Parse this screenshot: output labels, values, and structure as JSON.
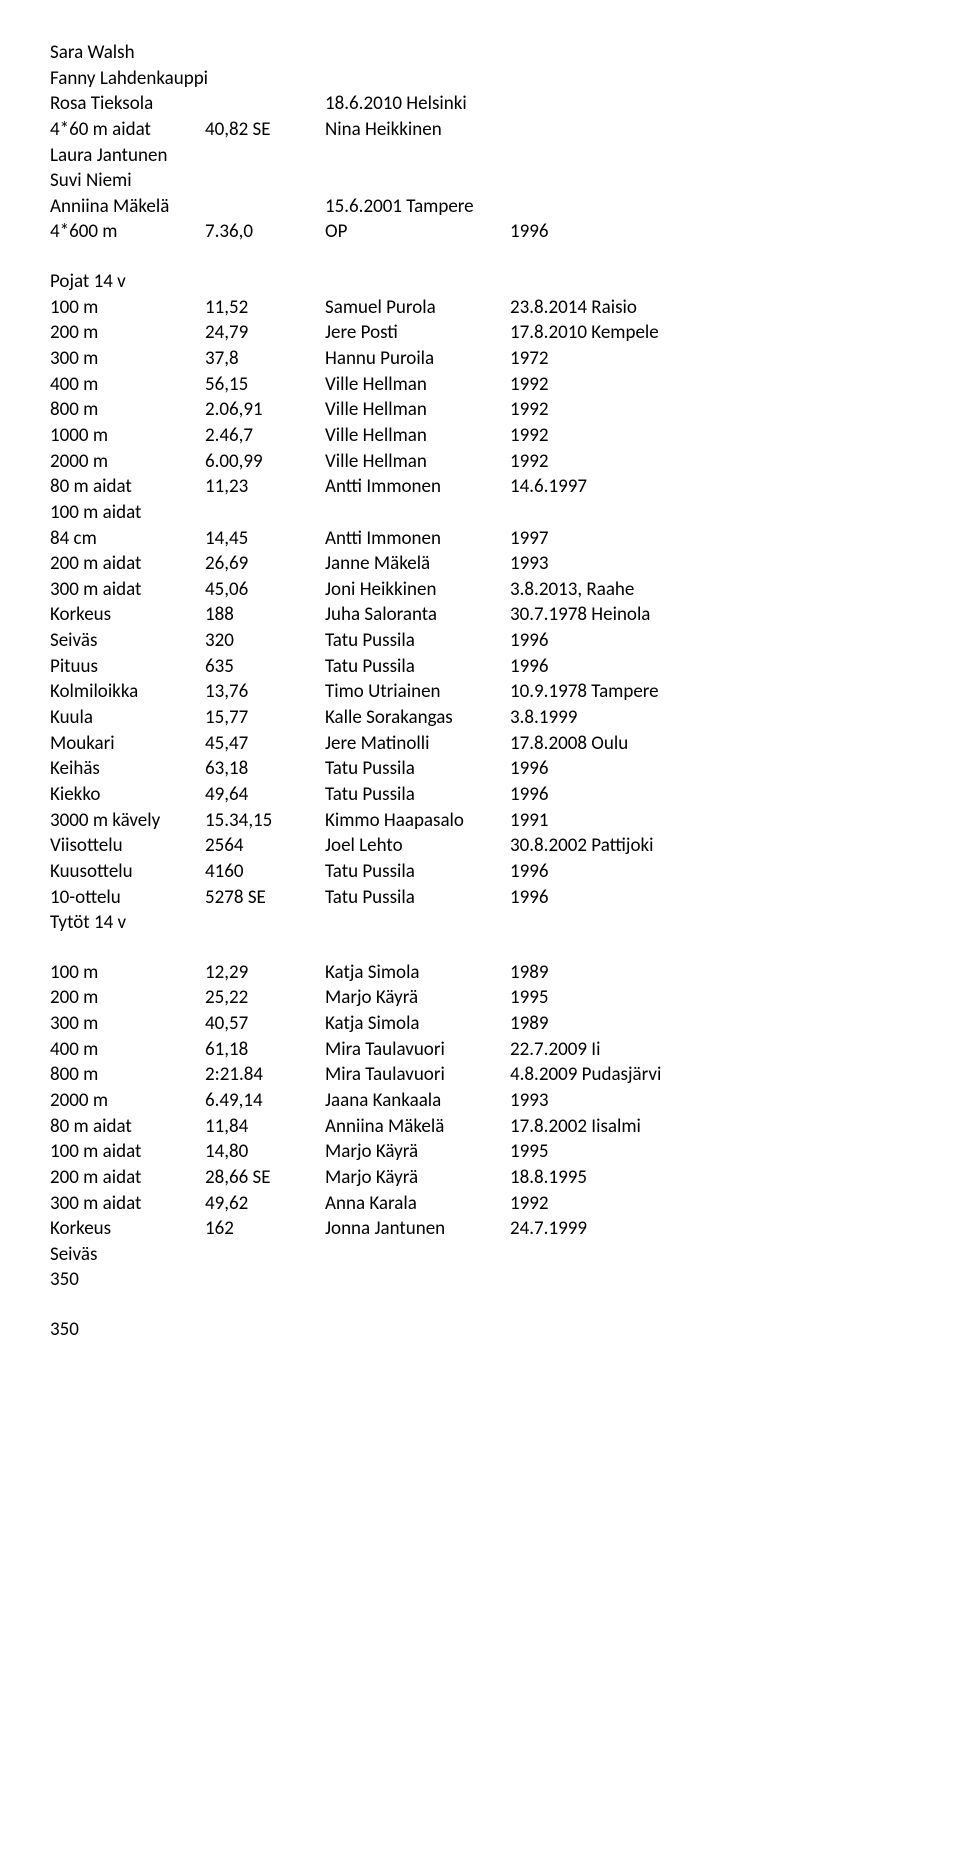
{
  "header_lines": [
    "Sara Walsh",
    "Fanny Lahdenkauppi"
  ],
  "rosa_line": {
    "c1": "Rosa Tieksola",
    "c2": "",
    "c3": "18.6.2010 Helsinki",
    "c4": ""
  },
  "r4x60": {
    "c1": "4*60 m aidat",
    "c2": "40,82 SE",
    "c3": "Nina Heikkinen",
    "c4": ""
  },
  "mid_lines": [
    "Laura Jantunen",
    "Suvi Niemi"
  ],
  "anniina": {
    "c1": "Anniina Mäkelä",
    "c2": "",
    "c3": "15.6.2001 Tampere",
    "c4": ""
  },
  "r4600": {
    "c1": "4*600 m",
    "c2": "7.36,0",
    "c3": "OP",
    "c4": "1996"
  },
  "pojat_title": "Pojat 14 v",
  "pojat_rows": [
    {
      "c1": "100 m",
      "c2": "11,52",
      "c3": "Samuel Purola",
      "c4": "23.8.2014 Raisio"
    },
    {
      "c1": "200 m",
      "c2": "24,79",
      "c3": "Jere Posti",
      "c4": "17.8.2010 Kempele"
    },
    {
      "c1": "300 m",
      "c2": "37,8",
      "c3": "Hannu Puroila",
      "c4": "1972"
    },
    {
      "c1": "400 m",
      "c2": "56,15",
      "c3": "Ville Hellman",
      "c4": "1992"
    },
    {
      "c1": "800 m",
      "c2": "2.06,91",
      "c3": "Ville Hellman",
      "c4": "1992"
    },
    {
      "c1": "1000 m",
      "c2": "2.46,7",
      "c3": "Ville Hellman",
      "c4": "1992"
    },
    {
      "c1": "2000 m",
      "c2": "6.00,99",
      "c3": "Ville Hellman",
      "c4": "1992"
    },
    {
      "c1": "80 m aidat",
      "c2": "11,23",
      "c3": "Antti Immonen",
      "c4": "14.6.1997"
    }
  ],
  "aidat100_line": "100 m aidat",
  "pojat_rows2": [
    {
      "c1": "84 cm",
      "c2": "14,45",
      "c3": "Antti Immonen",
      "c4": "1997"
    },
    {
      "c1": "200 m aidat",
      "c2": "26,69",
      "c3": "Janne Mäkelä",
      "c4": "1993"
    },
    {
      "c1": "300 m aidat",
      "c2": "45,06",
      "c3": "Joni Heikkinen",
      "c4": "3.8.2013, Raahe"
    },
    {
      "c1": "Korkeus",
      "c2": "188",
      "c3": "Juha Saloranta",
      "c4": "30.7.1978 Heinola"
    },
    {
      "c1": "Seiväs",
      "c2": "320",
      "c3": "Tatu Pussila",
      "c4": "1996"
    },
    {
      "c1": "Pituus",
      "c2": "635",
      "c3": "Tatu Pussila",
      "c4": "1996"
    },
    {
      "c1": "Kolmiloikka",
      "c2": "13,76",
      "c3": "Timo Utriainen",
      "c4": "10.9.1978 Tampere"
    },
    {
      "c1": "Kuula",
      "c2": "15,77",
      "c3": "Kalle Sorakangas",
      "c4": "3.8.1999"
    },
    {
      "c1": "Moukari",
      "c2": "45,47",
      "c3": "Jere Matinolli",
      "c4": "17.8.2008 Oulu"
    },
    {
      "c1": "Keihäs",
      "c2": "63,18",
      "c3": "Tatu Pussila",
      "c4": "1996"
    },
    {
      "c1": "Kiekko",
      "c2": "49,64",
      "c3": "Tatu Pussila",
      "c4": "1996"
    },
    {
      "c1": "3000 m kävely",
      "c2": "15.34,15",
      "c3": "Kimmo Haapasalo",
      "c4": "1991"
    },
    {
      "c1": "Viisottelu",
      "c2": "2564",
      "c3": "Joel Lehto",
      "c4": "30.8.2002 Pattijoki"
    },
    {
      "c1": "Kuusottelu",
      "c2": "4160",
      "c3": "Tatu Pussila",
      "c4": "1996"
    },
    {
      "c1": "10-ottelu",
      "c2": "5278 SE",
      "c3": "Tatu Pussila",
      "c4": "1996"
    }
  ],
  "tytot_title": "Tytöt 14 v",
  "tytot_rows": [
    {
      "c1": "100 m",
      "c2": "12,29",
      "c3": "Katja Simola",
      "c4": "1989"
    },
    {
      "c1": "200 m",
      "c2": "25,22",
      "c3": "Marjo Käyrä",
      "c4": "1995"
    },
    {
      "c1": "300 m",
      "c2": "40,57",
      "c3": "Katja Simola",
      "c4": "1989"
    },
    {
      "c1": "400 m",
      "c2": "61,18",
      "c3": "Mira Taulavuori",
      "c4": "22.7.2009 Ii"
    },
    {
      "c1": "800 m",
      "c2": "2:21.84",
      "c3": "Mira Taulavuori",
      "c4": "4.8.2009 Pudasjärvi"
    },
    {
      "c1": "2000 m",
      "c2": "6.49,14",
      "c3": "Jaana Kankaala",
      "c4": "1993"
    },
    {
      "c1": "80 m aidat",
      "c2": "11,84",
      "c3": "Anniina Mäkelä",
      "c4": "17.8.2002 Iisalmi"
    },
    {
      "c1": "100 m aidat",
      "c2": "14,80",
      "c3": "Marjo Käyrä",
      "c4": "1995"
    },
    {
      "c1": "200 m aidat",
      "c2": "28,66 SE",
      "c3": "Marjo Käyrä",
      "c4": "18.8.1995"
    },
    {
      "c1": "300 m aidat",
      "c2": "49,62",
      "c3": "Anna Karala",
      "c4": "1992"
    },
    {
      "c1": "Korkeus",
      "c2": "162",
      "c3": "Jonna Jantunen",
      "c4": "24.7.1999"
    }
  ],
  "seivas_line": "Seiväs",
  "n350a": "350",
  "n350b": "350"
}
